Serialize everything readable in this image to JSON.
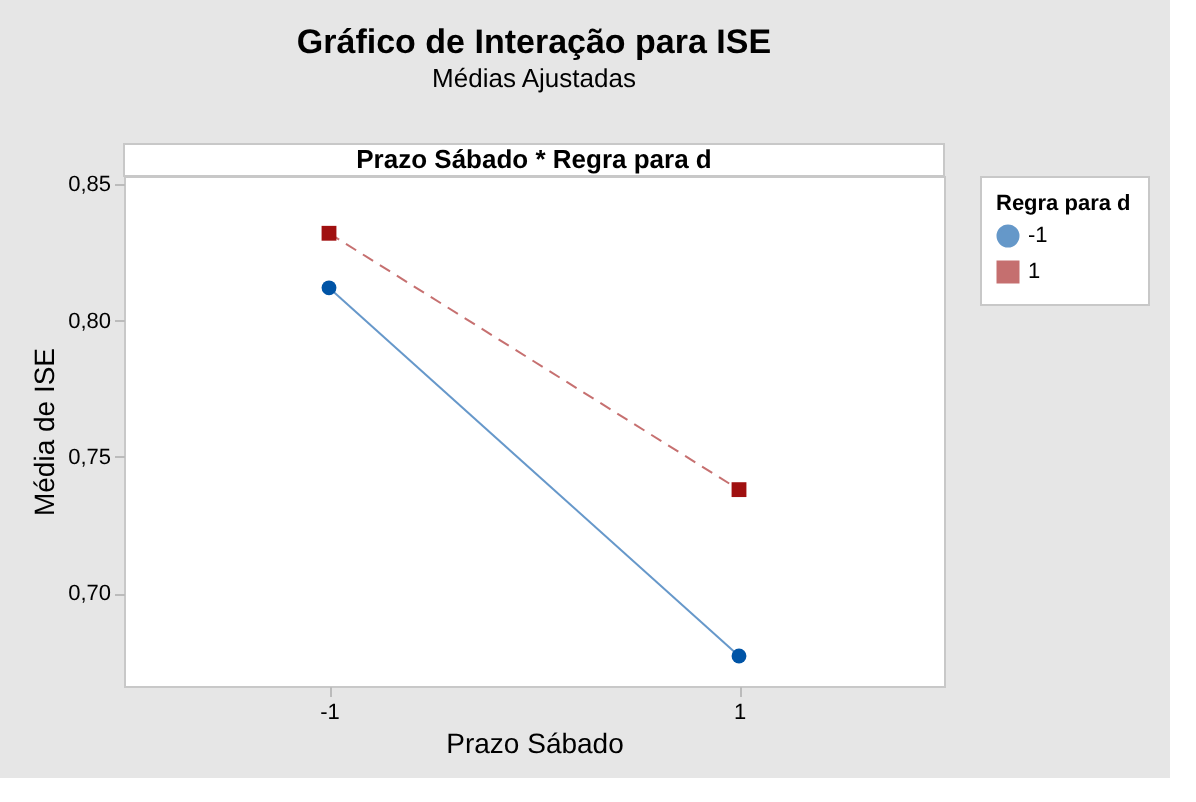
{
  "chart_data": {
    "type": "line",
    "title": "Gráfico de Interação para ISE",
    "subtitle": "Médias Ajustadas",
    "annotations": [
      "Prazo Sábado * Regra para d"
    ],
    "xlabel": "Prazo Sábado",
    "ylabel": "Média de ISE",
    "legend_title": "Regra para d",
    "categories": [
      "-1",
      "1"
    ],
    "series": [
      {
        "name": "-1",
        "color": "#0054a6",
        "values": [
          0.812,
          0.677
        ],
        "marker": "circle",
        "line_style": "solid"
      },
      {
        "name": "1",
        "color": "#a01010",
        "values": [
          0.832,
          0.738
        ],
        "marker": "square",
        "line_style": "dashed"
      }
    ],
    "ylim": [
      0.666,
      0.853
    ],
    "yticks": [
      {
        "value": 0.7,
        "label": "0,70"
      },
      {
        "value": 0.75,
        "label": "0,75"
      },
      {
        "value": 0.8,
        "label": "0,80"
      },
      {
        "value": 0.85,
        "label": "0,85"
      }
    ],
    "grid": false,
    "legend": "top right"
  }
}
